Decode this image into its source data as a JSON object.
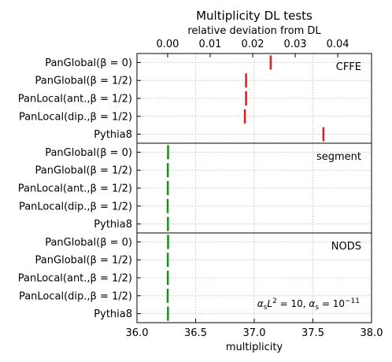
{
  "chart_data": {
    "type": "scatter",
    "title": "Multiplicity DL tests",
    "xlabel_bottom": "multiplicity",
    "xlabel_top": "relative deviation from DL",
    "xlim": [
      36.0,
      38.0
    ],
    "xticks": [
      "36.0",
      "36.5",
      "37.0",
      "37.5",
      "38.0"
    ],
    "top_xticks": [
      {
        "value": 36.2614,
        "label": "0.00"
      },
      {
        "value": 36.624,
        "label": "0.01"
      },
      {
        "value": 36.9866,
        "label": "0.02"
      },
      {
        "value": 37.3492,
        "label": "0.03"
      },
      {
        "value": 37.7118,
        "label": "0.04"
      }
    ],
    "reference_value": 36.26,
    "grid": true,
    "row_labels": [
      "PanGlobal(β = 0)",
      "PanGlobal(β = 1/2)",
      "PanLocal(ant.,β = 1/2)",
      "PanLocal(dip.,β = 1/2)",
      "Pythia8"
    ],
    "panels": [
      {
        "name": "CFFE",
        "color": "#e31a1c",
        "values": [
          37.14,
          36.93,
          36.93,
          36.92,
          37.59
        ]
      },
      {
        "name": "segment",
        "color": "#1a8c1a",
        "values": [
          36.265,
          36.263,
          36.263,
          36.262,
          36.264
        ]
      },
      {
        "name": "NODS",
        "color": "#1a8c1a",
        "values": [
          36.265,
          36.263,
          36.263,
          36.262,
          36.264
        ]
      }
    ],
    "annotation": {
      "text": "α_s L^2 = 10, α_s = 10^{-11}"
    }
  }
}
